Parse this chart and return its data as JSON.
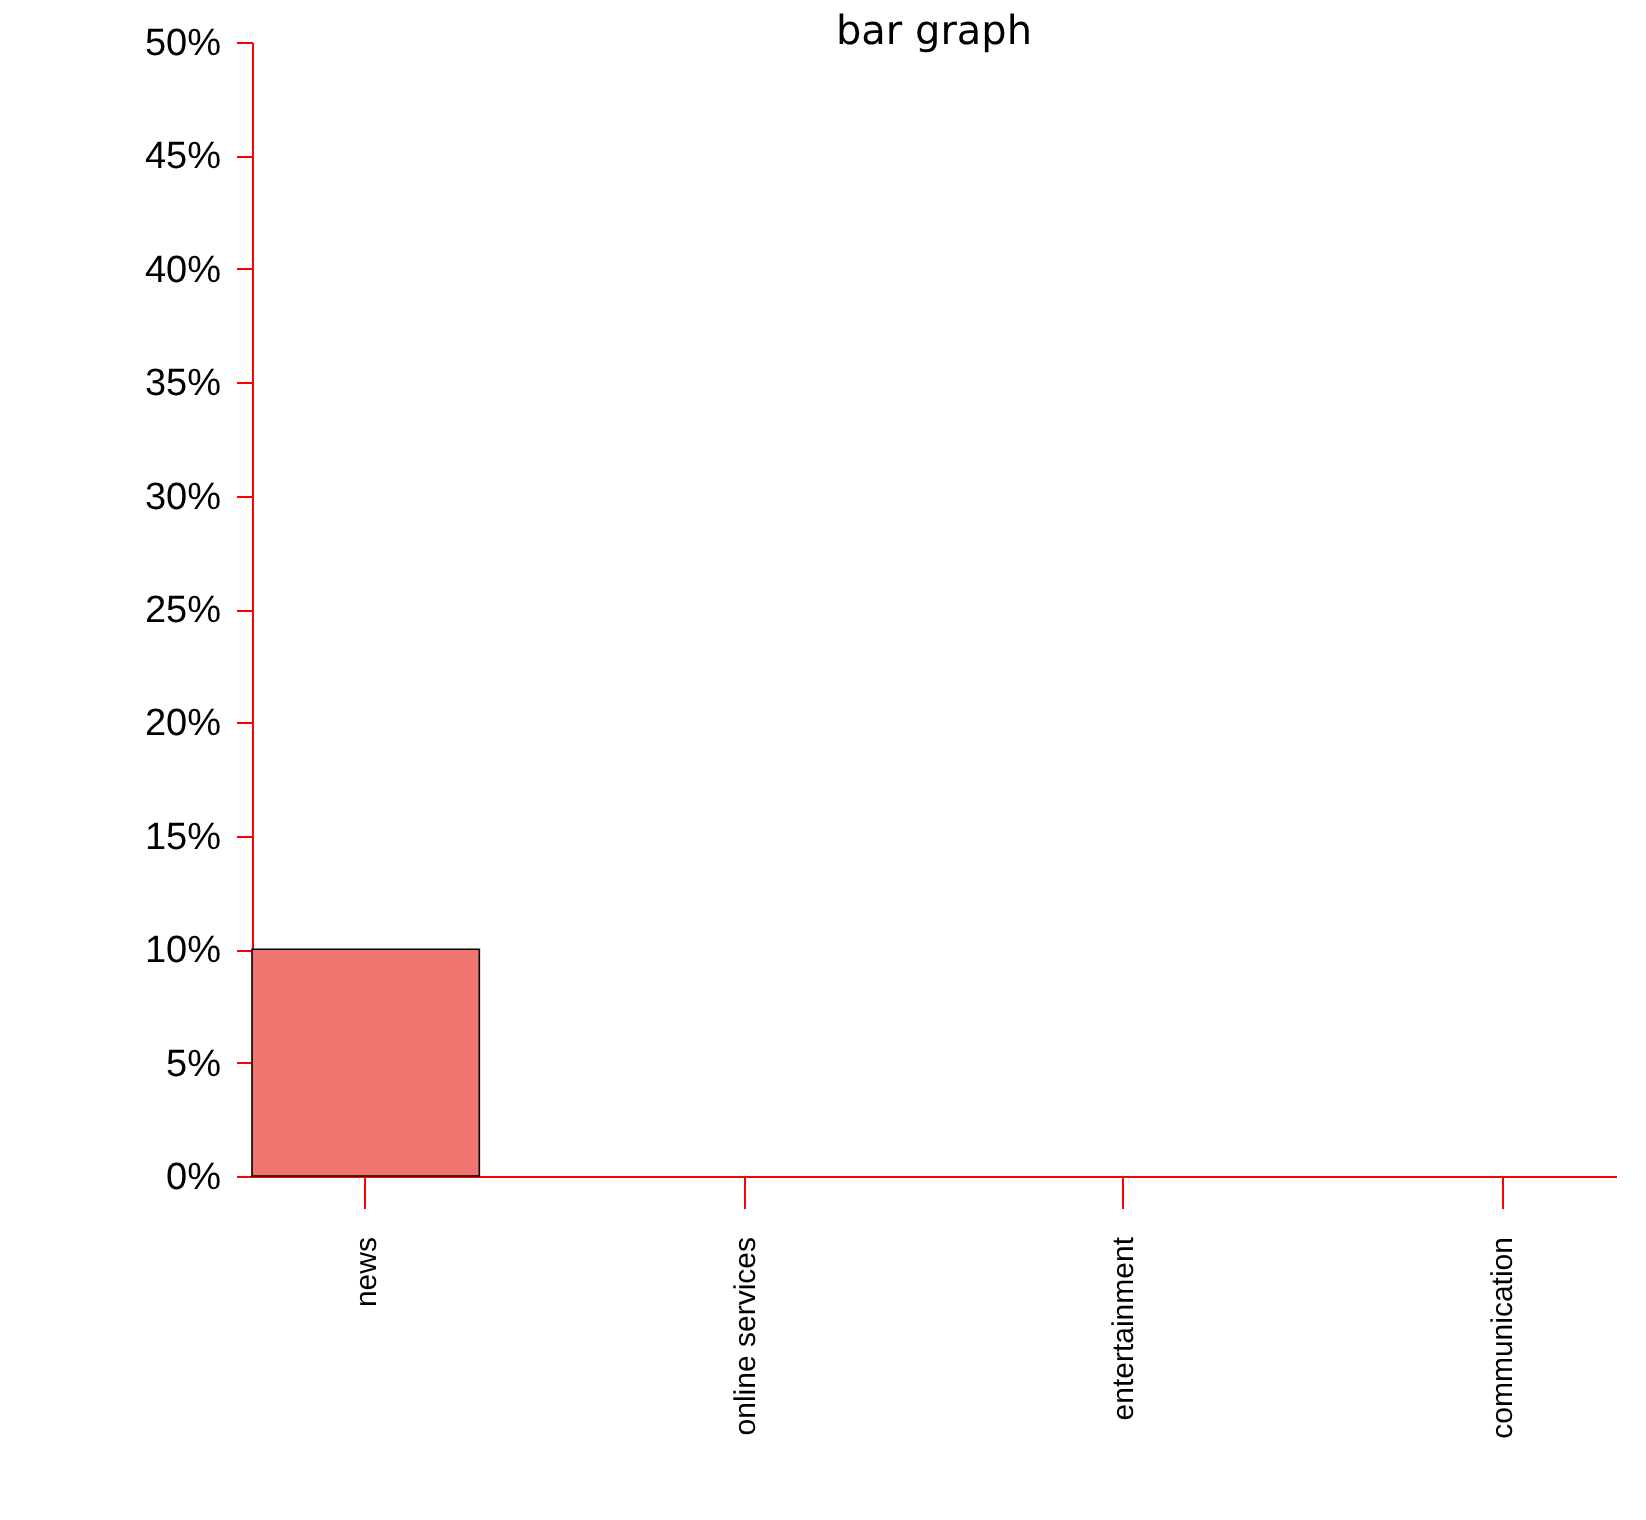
{
  "chart_data": {
    "type": "bar",
    "title": "bar graph",
    "categories": [
      "news",
      "online services",
      "entertainment",
      "communication"
    ],
    "values": [
      10,
      0,
      0,
      0
    ],
    "color": "#f07470",
    "ylim": [
      0,
      50
    ],
    "yticks": [
      {
        "value": 0,
        "label": "0%"
      },
      {
        "value": 5,
        "label": "5%"
      },
      {
        "value": 10,
        "label": "10%"
      },
      {
        "value": 15,
        "label": "15%"
      },
      {
        "value": 20,
        "label": "20%"
      },
      {
        "value": 25,
        "label": "25%"
      },
      {
        "value": 30,
        "label": "30%"
      },
      {
        "value": 35,
        "label": "35%"
      },
      {
        "value": 40,
        "label": "40%"
      },
      {
        "value": 45,
        "label": "45%"
      },
      {
        "value": 50,
        "label": "50%"
      }
    ],
    "grid": false
  }
}
